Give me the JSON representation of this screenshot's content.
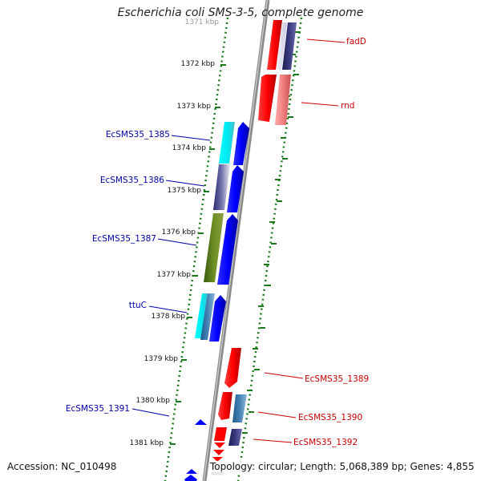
{
  "title": "Escherichia coli SMS-3-5, complete genome",
  "footer": {
    "accession": "Accession: NC_010498",
    "summary": "Topology: circular; Length: 5,068,389 bp; Genes: 4,855"
  },
  "ruler": {
    "ticks": [
      {
        "label": "1371 kbp"
      },
      {
        "label": "1372 kbp"
      },
      {
        "label": "1373 kbp"
      },
      {
        "label": "1374 kbp"
      },
      {
        "label": "1375 kbp"
      },
      {
        "label": "1376 kbp"
      },
      {
        "label": "1377 kbp"
      },
      {
        "label": "1378 kbp"
      },
      {
        "label": "1379 kbp"
      },
      {
        "label": "1380 kbp"
      },
      {
        "label": "1381 kbp"
      }
    ]
  },
  "colors": {
    "forward_label": "#0000aa",
    "reverse_label": "#cc0000",
    "ruler_dots": "#1a7a1a",
    "backbone": "#777777"
  },
  "gene_labels": [
    {
      "name": "fadD",
      "strand": "reverse"
    },
    {
      "name": "rnd",
      "strand": "reverse"
    },
    {
      "name": "EcSMS35_1385",
      "strand": "forward"
    },
    {
      "name": "EcSMS35_1386",
      "strand": "forward"
    },
    {
      "name": "EcSMS35_1387",
      "strand": "forward"
    },
    {
      "name": "ttuC",
      "strand": "forward"
    },
    {
      "name": "EcSMS35_1389",
      "strand": "reverse"
    },
    {
      "name": "EcSMS35_1390",
      "strand": "reverse"
    },
    {
      "name": "EcSMS35_1391",
      "strand": "forward"
    },
    {
      "name": "EcSMS35_1392",
      "strand": "reverse"
    }
  ]
}
